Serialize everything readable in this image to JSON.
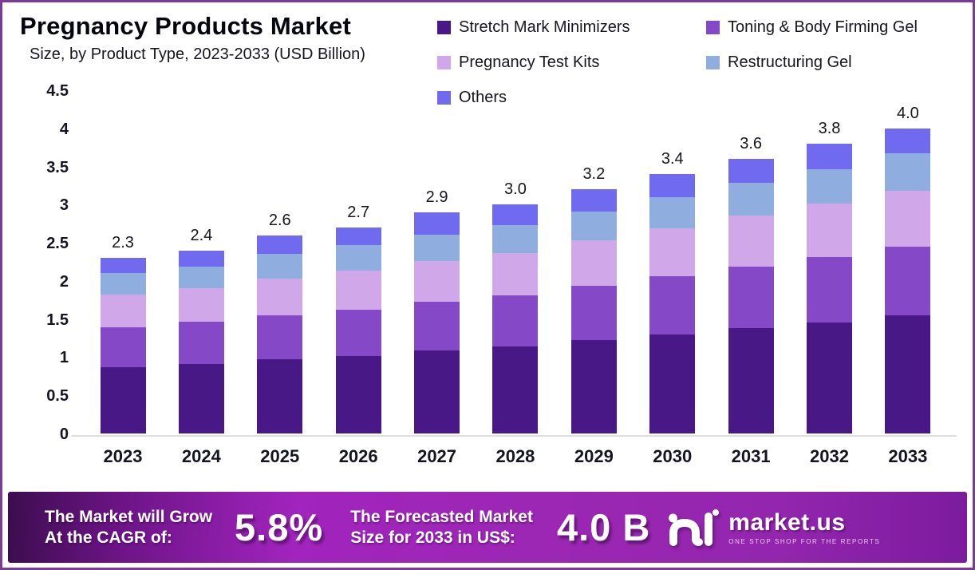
{
  "header": {
    "title": "Pregnancy Products Market",
    "subtitle": "Size, by Product Type, 2023-2033 (USD Billion)"
  },
  "chart_data": {
    "type": "bar",
    "stacked": true,
    "title": "Pregnancy Products Market",
    "subtitle": "Size, by Product Type, 2023-2033 (USD Billion)",
    "categories": [
      "2023",
      "2024",
      "2025",
      "2026",
      "2027",
      "2028",
      "2029",
      "2030",
      "2031",
      "2032",
      "2033"
    ],
    "totals": [
      2.3,
      2.4,
      2.6,
      2.7,
      2.9,
      3.0,
      3.2,
      3.4,
      3.6,
      3.8,
      4.0
    ],
    "series": [
      {
        "name": "Stretch Mark Minimizers",
        "color": "#491887",
        "values": [
          0.87,
          0.91,
          0.97,
          1.02,
          1.09,
          1.14,
          1.22,
          1.3,
          1.38,
          1.46,
          1.55
        ]
      },
      {
        "name": "Toning & Body Firming Gel",
        "color": "#8549c8",
        "values": [
          0.52,
          0.55,
          0.58,
          0.6,
          0.64,
          0.67,
          0.72,
          0.76,
          0.81,
          0.85,
          0.9
        ]
      },
      {
        "name": "Pregnancy Test Kits",
        "color": "#d0a7e8",
        "values": [
          0.43,
          0.44,
          0.48,
          0.52,
          0.53,
          0.56,
          0.59,
          0.63,
          0.67,
          0.71,
          0.73
        ]
      },
      {
        "name": "Restructuring Gel",
        "color": "#8fadde",
        "values": [
          0.28,
          0.29,
          0.33,
          0.33,
          0.35,
          0.36,
          0.38,
          0.41,
          0.43,
          0.45,
          0.49
        ]
      },
      {
        "name": "Others",
        "color": "#6f6af0",
        "values": [
          0.2,
          0.21,
          0.24,
          0.23,
          0.29,
          0.27,
          0.29,
          0.3,
          0.31,
          0.33,
          0.33
        ]
      }
    ],
    "y_ticks": [
      "4.5",
      "4",
      "3.5",
      "3",
      "2.5",
      "2",
      "1.5",
      "1",
      "0.5",
      "0"
    ],
    "ylim": [
      0,
      4.5
    ],
    "grid": false,
    "legend_position": "top-right",
    "legend_order": [
      "Stretch Mark Minimizers",
      "Toning & Body Firming Gel",
      "Pregnancy Test Kits",
      "Restructuring Gel",
      "Others"
    ]
  },
  "banner": {
    "cagr_line1": "The Market will Grow",
    "cagr_line2": "At the CAGR of:",
    "cagr_value": "5.8%",
    "forecast_line1": "The Forecasted Market",
    "forecast_line2": "Size for 2033 in US$:",
    "forecast_value": "4.0 B",
    "brand": "market.us",
    "tagline": "ONE STOP SHOP FOR THE REPORTS"
  },
  "colors": {
    "border": "#7b3a97",
    "banner_start": "#3c0d4e",
    "banner_mid": "#9c27b4",
    "baseline": "#dedede",
    "text": "#15151f"
  }
}
